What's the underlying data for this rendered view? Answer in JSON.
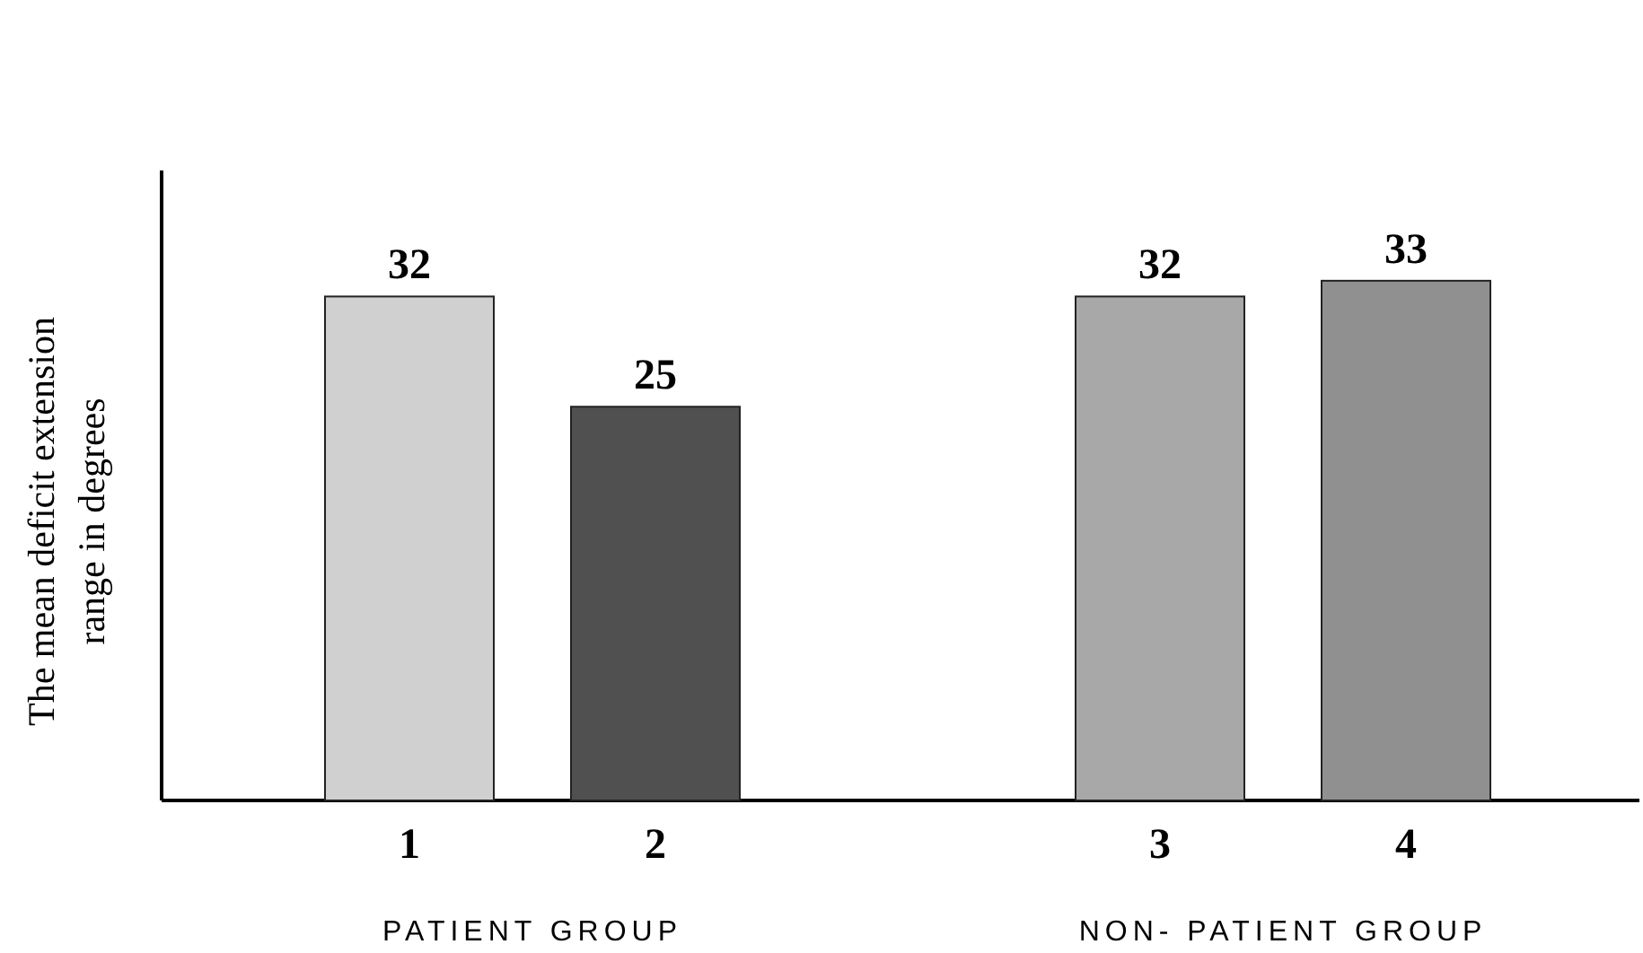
{
  "chart_data": {
    "type": "bar",
    "ylabel": "The mean deficit extension range in degrees",
    "categories": [
      "1",
      "2",
      "3",
      "4"
    ],
    "values": [
      32,
      25,
      32,
      33
    ],
    "colors": [
      "#d0d0d0",
      "#505050",
      "#a8a8a8",
      "#909090"
    ],
    "ylim": [
      0,
      40
    ],
    "data_labels": true,
    "annotations": [
      "PATIENT GROUP",
      "NON- PATIENT GROUP"
    ]
  }
}
